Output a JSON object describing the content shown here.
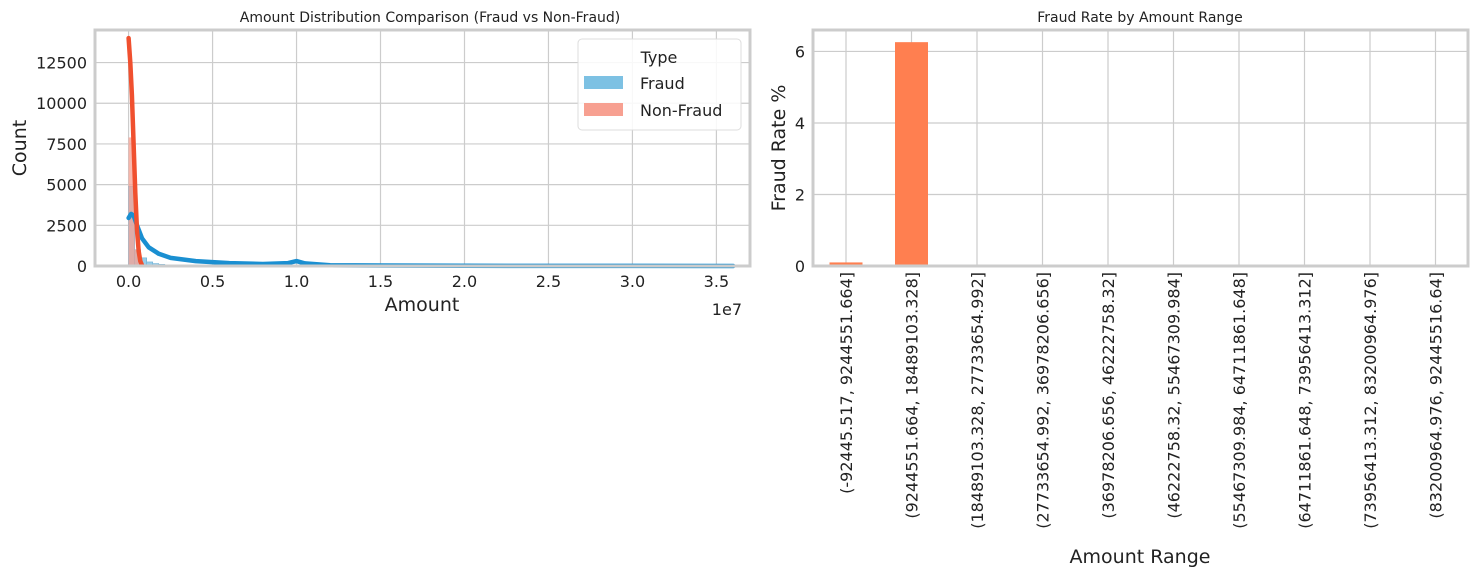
{
  "chart_data": [
    {
      "type": "histogram",
      "title": "Amount Distribution Comparison (Fraud vs Non-Fraud)",
      "xlabel": "Amount",
      "ylabel": "Count",
      "x_offset_text": "1e7",
      "xlim": [
        -2000000,
        37000000
      ],
      "ylim": [
        0,
        14500
      ],
      "xticks": [
        0,
        5000000,
        10000000,
        15000000,
        20000000,
        25000000,
        30000000,
        35000000
      ],
      "xtick_labels": [
        "0.0",
        "0.5",
        "1.0",
        "1.5",
        "2.0",
        "2.5",
        "3.0",
        "3.5"
      ],
      "yticks": [
        0,
        2500,
        5000,
        7500,
        10000,
        12500
      ],
      "ytick_labels": [
        "0",
        "2500",
        "5000",
        "7500",
        "10000",
        "12500"
      ],
      "grid": true,
      "legend": {
        "title": "Type",
        "placement": "top-right"
      },
      "series": [
        {
          "name": "Fraud",
          "color": "#7dc1e3",
          "kde_color": "#1a8fd1",
          "bin_width": 360000,
          "bins_x": [
            0,
            360000,
            720000,
            1080000,
            1440000,
            1800000
          ],
          "bins_count": [
            4900,
            1000,
            500,
            250,
            150,
            100
          ],
          "tail_start": 1800000,
          "tail_end": 36000000,
          "tail_count": 30,
          "kde_x": [
            0,
            150000,
            300000,
            500000,
            800000,
            1200000,
            1800000,
            2500000,
            4000000,
            6000000,
            8000000,
            9500000,
            10000000,
            10500000,
            12000000,
            20000000,
            36000000
          ],
          "kde_y": [
            2950,
            3200,
            3100,
            2500,
            1700,
            1150,
            750,
            500,
            300,
            180,
            120,
            180,
            300,
            160,
            40,
            10,
            0
          ]
        },
        {
          "name": "Non-Fraud",
          "color": "#f7a091",
          "kde_color": "#f0502f",
          "bin_width": 360000,
          "bins_x": [
            0,
            360000,
            720000
          ],
          "bins_count": [
            7900,
            1000,
            100
          ],
          "kde_x": [
            0,
            100000,
            200000,
            300000,
            400000,
            500000,
            600000,
            700000,
            800000
          ],
          "kde_y": [
            14000,
            12500,
            10500,
            7500,
            4500,
            2200,
            900,
            300,
            50
          ]
        }
      ]
    },
    {
      "type": "bar",
      "title": "Fraud Rate by Amount Range",
      "xlabel": "Amount Range",
      "ylabel": "Fraud Rate %",
      "ylim": [
        0,
        6.6
      ],
      "yticks": [
        0,
        2,
        4,
        6
      ],
      "ytick_labels": [
        "0",
        "2",
        "4",
        "6"
      ],
      "grid": true,
      "bar_color": "#ff7f50",
      "categories": [
        "(-92445.517, 9244551.664]",
        "(9244551.664, 18489103.328]",
        "(18489103.328, 27733654.992]",
        "(27733654.992, 36978206.656]",
        "(36978206.656, 46222758.32]",
        "(46222758.32, 55467309.984]",
        "(55467309.984, 64711861.648]",
        "(64711861.648, 73956413.312]",
        "(73956413.312, 83200964.976]",
        "(83200964.976, 92445516.64]"
      ],
      "values": [
        0.1,
        6.26,
        0,
        0,
        0,
        0,
        0,
        0,
        0,
        0
      ]
    }
  ]
}
